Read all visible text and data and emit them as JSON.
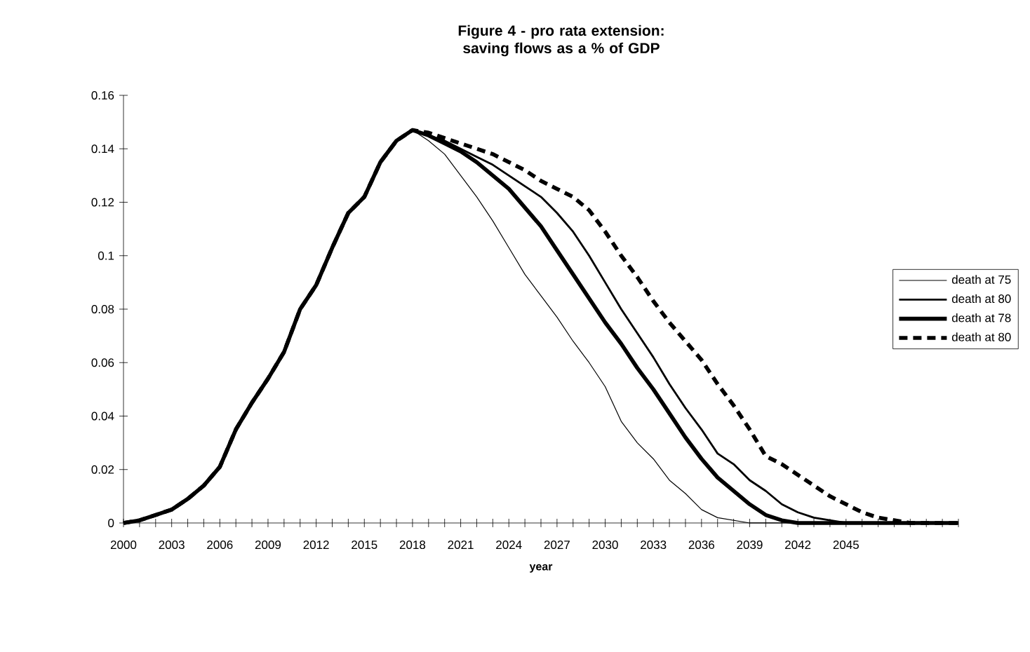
{
  "chart_data": {
    "type": "line",
    "title": "Figure 4 - pro rata extension: saving flows as a % of GDP",
    "xlabel": "year",
    "categories": [
      "2000",
      null,
      null,
      "2003",
      null,
      null,
      "2006",
      null,
      null,
      "2009",
      null,
      null,
      "2012",
      null,
      null,
      "2015",
      null,
      null,
      "2018",
      null,
      null,
      "2021",
      null,
      null,
      "2024",
      null,
      null,
      "2027",
      null,
      null,
      "2030",
      null,
      null,
      "2033",
      null,
      null,
      "2036",
      null,
      null,
      "2039",
      null,
      null,
      "2042",
      null,
      null,
      "2045",
      null,
      null,
      null,
      null,
      null,
      null,
      null
    ],
    "ylim": [
      0,
      0.16
    ],
    "yticks": [
      0,
      0.02,
      0.04,
      0.06,
      0.08,
      0.1,
      0.12,
      0.14,
      0.16
    ],
    "grid": false,
    "legend": "right",
    "marker": "none",
    "series": [
      {
        "name": "death at 75",
        "color": "#000000",
        "line_style": "solid",
        "values": [
          0,
          0.001,
          0.003,
          0.005,
          0.009,
          0.014,
          0.021,
          0.035,
          0.045,
          0.054,
          0.064,
          0.08,
          0.089,
          0.103,
          0.116,
          0.122,
          0.135,
          0.143,
          0.147,
          0.143,
          0.138,
          0.13,
          0.122,
          0.113,
          0.103,
          0.093,
          0.085,
          0.077,
          0.068,
          0.06,
          0.051,
          0.038,
          0.03,
          0.024,
          0.016,
          0.011,
          0.005,
          0.002,
          0.001,
          0,
          0,
          0,
          0,
          0,
          0,
          0,
          0,
          0,
          0,
          0,
          0,
          0,
          0
        ]
      },
      {
        "name": "death at 80",
        "color": "#000000",
        "line_style": "solid",
        "values": [
          0,
          0.001,
          0.003,
          0.005,
          0.009,
          0.014,
          0.021,
          0.035,
          0.045,
          0.054,
          0.064,
          0.08,
          0.089,
          0.103,
          0.116,
          0.122,
          0.135,
          0.143,
          0.147,
          0.145,
          0.143,
          0.14,
          0.137,
          0.134,
          0.13,
          0.126,
          0.122,
          0.116,
          0.109,
          0.1,
          0.09,
          0.08,
          0.071,
          0.062,
          0.052,
          0.043,
          0.035,
          0.026,
          0.022,
          0.016,
          0.012,
          0.007,
          0.004,
          0.002,
          0.001,
          0,
          0,
          0,
          0,
          0,
          0,
          0,
          0
        ]
      },
      {
        "name": "death at 78",
        "color": "#000000",
        "line_style": "solid",
        "values": [
          0,
          0.001,
          0.003,
          0.005,
          0.009,
          0.014,
          0.021,
          0.035,
          0.045,
          0.054,
          0.064,
          0.08,
          0.089,
          0.103,
          0.116,
          0.122,
          0.135,
          0.143,
          0.147,
          0.145,
          0.142,
          0.139,
          0.135,
          0.13,
          0.125,
          0.118,
          0.111,
          0.102,
          0.093,
          0.084,
          0.075,
          0.067,
          0.058,
          0.05,
          0.041,
          0.032,
          0.024,
          0.017,
          0.012,
          0.007,
          0.003,
          0.001,
          0,
          0,
          0,
          0,
          0,
          0,
          0,
          0,
          0,
          0,
          0
        ]
      },
      {
        "name": "death at 80",
        "color": "#000000",
        "line_style": "dashed",
        "values": [
          0,
          0.001,
          0.003,
          0.005,
          0.009,
          0.014,
          0.021,
          0.035,
          0.045,
          0.054,
          0.064,
          0.08,
          0.089,
          0.103,
          0.116,
          0.122,
          0.135,
          0.143,
          0.147,
          0.146,
          0.144,
          0.142,
          0.14,
          0.138,
          0.135,
          0.132,
          0.128,
          0.125,
          0.122,
          0.117,
          0.109,
          0.1,
          0.092,
          0.083,
          0.075,
          0.068,
          0.061,
          0.052,
          0.044,
          0.035,
          0.025,
          0.022,
          0.018,
          0.014,
          0.01,
          0.007,
          0.004,
          0.002,
          0.001,
          0,
          0,
          0,
          0
        ]
      }
    ]
  }
}
